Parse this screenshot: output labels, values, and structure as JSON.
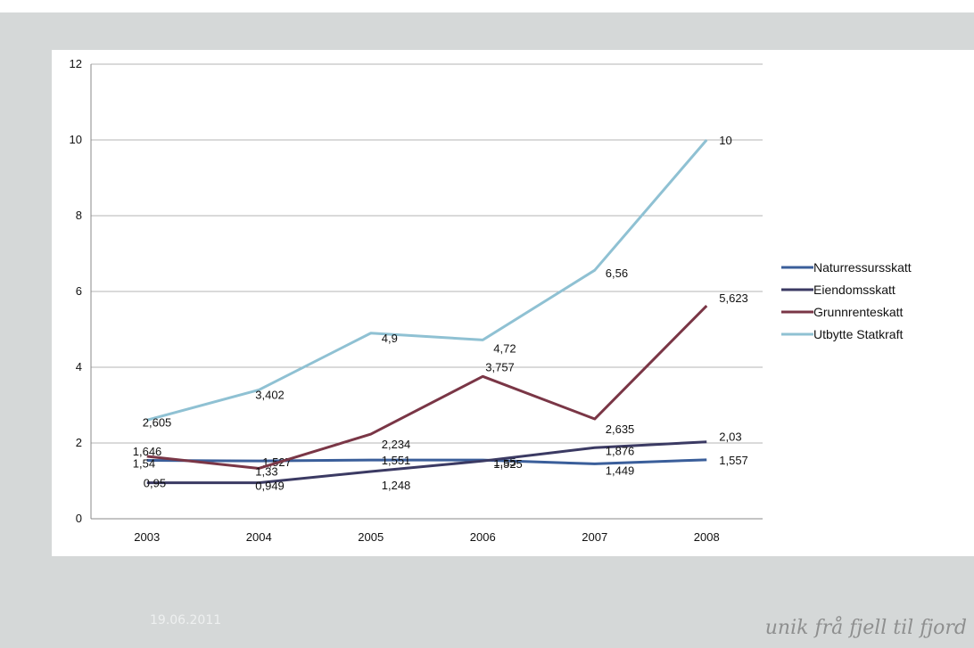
{
  "footer": {
    "date": "19.06.2011",
    "slogan": "unik frå fjell til fjord"
  },
  "colors": {
    "Naturressursskatt": "#3a5e9a",
    "Eiendomsskatt": "#3b3a63",
    "Grunnrenteskatt": "#7a3646",
    "Utbytte Statkraft": "#8fc1d3",
    "background": "#d5d8d8",
    "gridline": "#b6b6b6"
  },
  "chart_data": {
    "type": "line",
    "categories": [
      "2003",
      "2004",
      "2005",
      "2006",
      "2007",
      "2008"
    ],
    "ylim": [
      0,
      12
    ],
    "yticks": [
      0,
      2,
      4,
      6,
      8,
      10,
      12
    ],
    "grid": true,
    "legend_position": "right",
    "series": [
      {
        "name": "Naturressursskatt",
        "values": [
          1.54,
          1.527,
          1.551,
          1.55,
          1.449,
          1.557
        ],
        "labels": [
          "1,54",
          "1,527",
          "1,551",
          "1,55",
          "1,449",
          "1,557"
        ]
      },
      {
        "name": "Eiendomsskatt",
        "values": [
          0.95,
          0.949,
          1.248,
          1.525,
          1.876,
          2.03
        ],
        "labels": [
          "0,95",
          "0,949",
          "1,248",
          "1,525",
          "1,876",
          "2,03"
        ]
      },
      {
        "name": "Grunnrenteskatt",
        "values": [
          1.646,
          1.33,
          2.234,
          3.757,
          2.635,
          5.623
        ],
        "labels": [
          "1,646",
          "1,33",
          "2,234",
          "3,757",
          "2,635",
          "5,623"
        ]
      },
      {
        "name": "Utbytte Statkraft",
        "values": [
          2.605,
          3.402,
          4.9,
          4.72,
          6.56,
          10
        ],
        "labels": [
          "2,605",
          "3,402",
          "4,9",
          "4,72",
          "6,56",
          "10"
        ]
      }
    ]
  }
}
